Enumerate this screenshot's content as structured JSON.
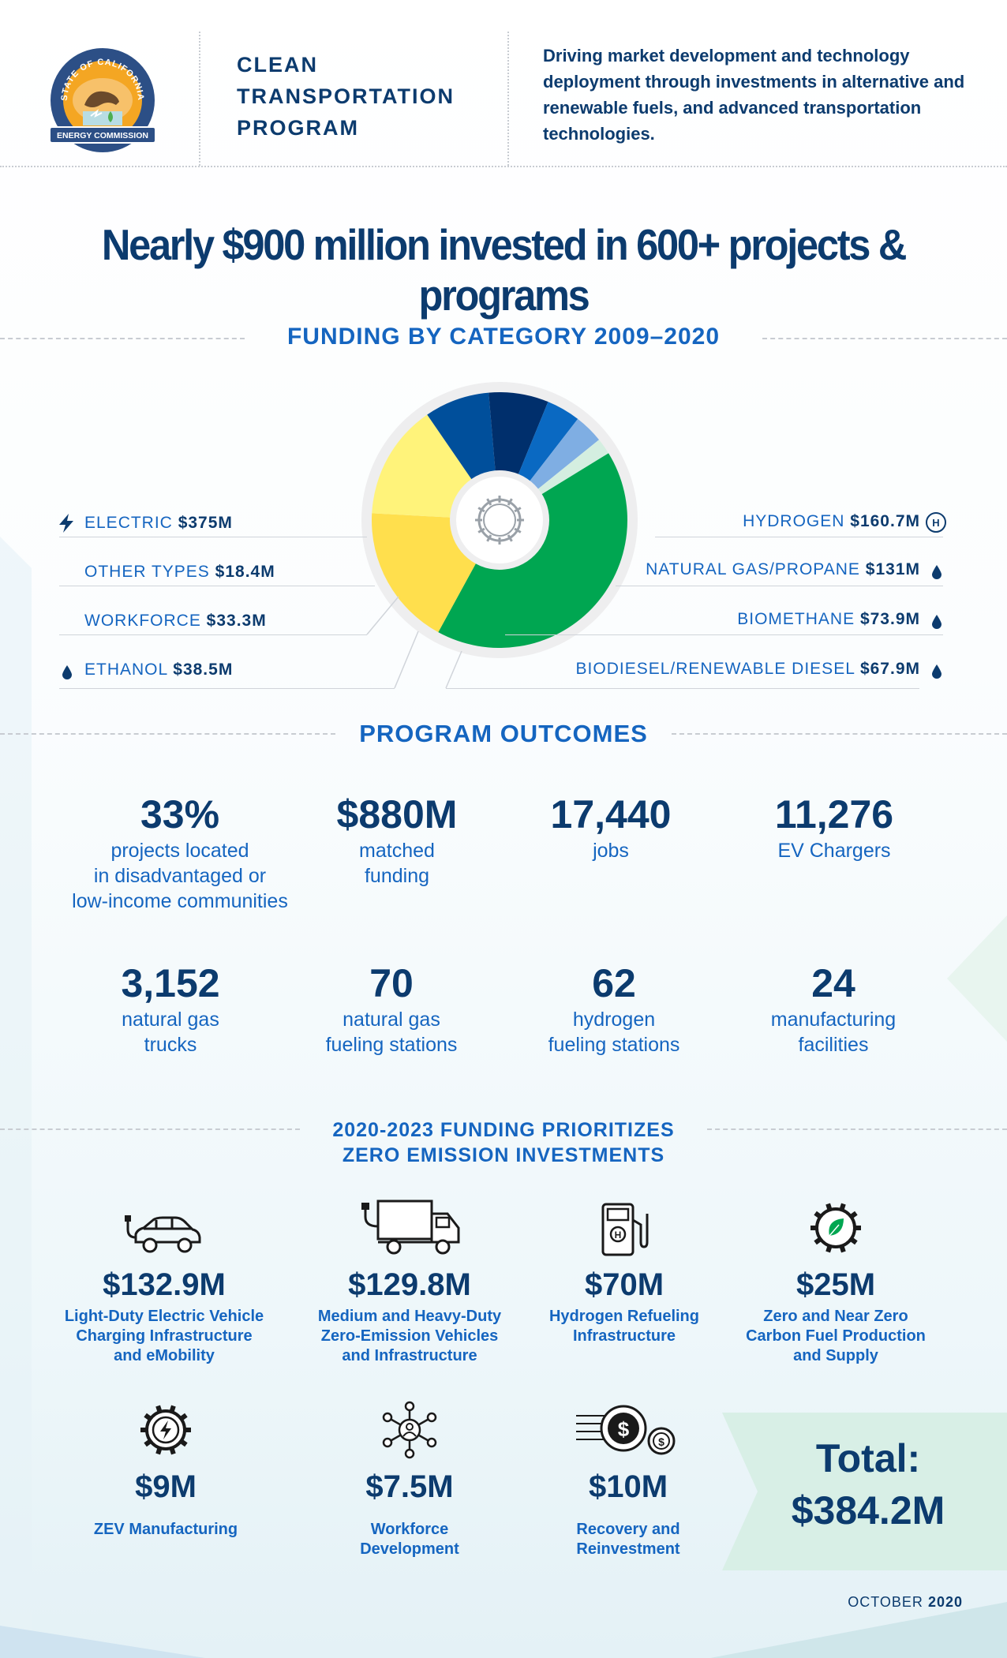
{
  "header": {
    "logo_ring_text": "STATE OF CALIFORNIA",
    "logo_banner_text": "ENERGY COMMISSION",
    "program_title_lines": [
      "CLEAN",
      "TRANSPORTATION",
      "PROGRAM"
    ],
    "description": "Driving market development and technology deployment through investments in alternative and renewable fuels, and advanced transportation technologies."
  },
  "headline": "Nearly $900 million invested in 600+ projects & programs",
  "funding_by_category": {
    "title": "FUNDING BY CATEGORY 2009–2020",
    "left_labels": [
      {
        "name": "ELECTRIC",
        "amount": "$375M",
        "icon": "lightning-icon"
      },
      {
        "name": "OTHER TYPES",
        "amount": "$18.4M",
        "icon": ""
      },
      {
        "name": "WORKFORCE",
        "amount": "$33.3M",
        "icon": ""
      },
      {
        "name": "ETHANOL",
        "amount": "$38.5M",
        "icon": "droplet-icon"
      }
    ],
    "right_labels": [
      {
        "name": "HYDROGEN",
        "amount": "$160.7M",
        "icon": "hydrogen-icon"
      },
      {
        "name": "NATURAL GAS/PROPANE",
        "amount": "$131M",
        "icon": "droplet-icon"
      },
      {
        "name": "BIOMETHANE",
        "amount": "$73.9M",
        "icon": "droplet-icon"
      },
      {
        "name": "BIODIESEL/RENEWABLE DIESEL",
        "amount": "$67.9M",
        "icon": "droplet-icon"
      }
    ]
  },
  "chart_data": {
    "type": "pie",
    "title": "FUNDING BY CATEGORY 2009–2020",
    "units": "$M",
    "slices": [
      {
        "label": "ELECTRIC",
        "value": 375,
        "color": "#00a651"
      },
      {
        "label": "HYDROGEN",
        "value": 160.7,
        "color": "#ffdf4d"
      },
      {
        "label": "NATURAL GAS/PROPANE",
        "value": 131,
        "color": "#fff37a"
      },
      {
        "label": "BIOMETHANE",
        "value": 73.9,
        "color": "#004f9b"
      },
      {
        "label": "BIODIESEL/RENEWABLE DIESEL",
        "value": 67.9,
        "color": "#002f6c"
      },
      {
        "label": "ETHANOL",
        "value": 38.5,
        "color": "#0a69c2"
      },
      {
        "label": "WORKFORCE",
        "value": 33.3,
        "color": "#7faee3"
      },
      {
        "label": "OTHER TYPES",
        "value": 18.4,
        "color": "#d4eee0"
      }
    ]
  },
  "outcomes": {
    "title": "PROGRAM OUTCOMES",
    "stats": [
      {
        "value": "33%",
        "lines": [
          "projects located",
          "in disadvantaged or",
          "low-income communities"
        ]
      },
      {
        "value": "$880M",
        "lines": [
          "matched",
          "funding"
        ]
      },
      {
        "value": "17,440",
        "lines": [
          "jobs"
        ]
      },
      {
        "value": "11,276",
        "lines": [
          "EV Chargers"
        ]
      },
      {
        "value": "3,152",
        "lines": [
          "natural gas",
          "trucks"
        ]
      },
      {
        "value": "70",
        "lines": [
          "natural gas",
          "fueling stations"
        ]
      },
      {
        "value": "62",
        "lines": [
          "hydrogen",
          "fueling stations"
        ]
      },
      {
        "value": "24",
        "lines": [
          "manufacturing",
          "facilities"
        ]
      }
    ]
  },
  "priorities": {
    "title_lines": [
      "2020-2023 FUNDING PRIORITIZES",
      "ZERO EMISSION INVESTMENTS"
    ],
    "items": [
      {
        "icon": "electric-car-icon",
        "amount": "$132.9M",
        "lines": [
          "Light-Duty Electric Vehicle",
          "Charging Infrastructure",
          "and eMobility"
        ]
      },
      {
        "icon": "electric-truck-icon",
        "amount": "$129.8M",
        "lines": [
          "Medium and Heavy-Duty",
          "Zero-Emission Vehicles",
          "and Infrastructure"
        ]
      },
      {
        "icon": "hydrogen-pump-icon",
        "amount": "$70M",
        "lines": [
          "Hydrogen Refueling",
          "Infrastructure"
        ]
      },
      {
        "icon": "leaf-gear-icon",
        "amount": "$25M",
        "lines": [
          "Zero and Near Zero",
          "Carbon Fuel Production",
          "and Supply"
        ]
      },
      {
        "icon": "lightning-gear-icon",
        "amount": "$9M",
        "lines": [
          "ZEV Manufacturing"
        ]
      },
      {
        "icon": "workforce-network-icon",
        "amount": "$7.5M",
        "lines": [
          "Workforce",
          "Development"
        ]
      },
      {
        "icon": "dollar-coins-icon",
        "amount": "$10M",
        "lines": [
          "Recovery and",
          "Reinvestment"
        ]
      }
    ],
    "total_label": "Total:",
    "total_amount": "$384.2M"
  },
  "footer": {
    "month": "OCTOBER",
    "year": "2020"
  },
  "colors": {
    "navy": "#0c3b6e",
    "blue": "#1565c0",
    "green": "#00a651",
    "yellow": "#ffdf4d"
  }
}
